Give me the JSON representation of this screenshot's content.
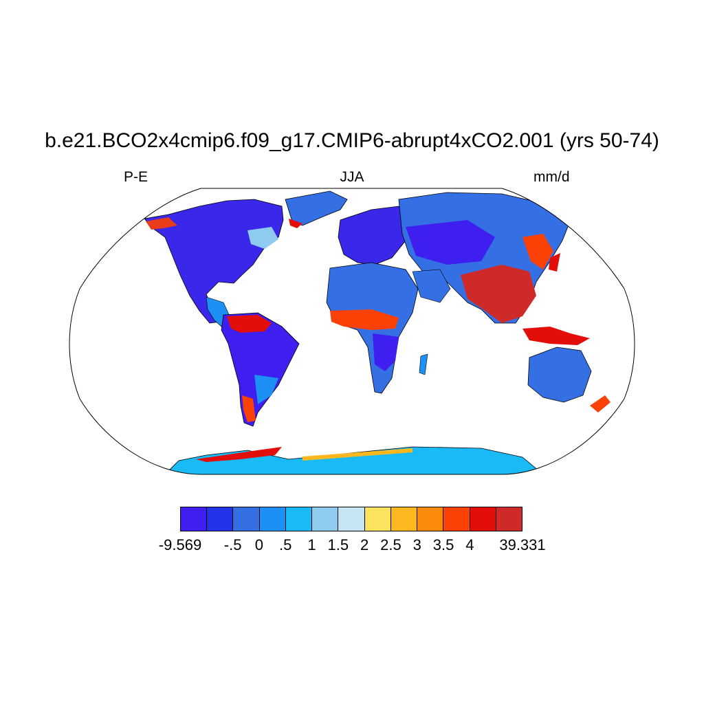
{
  "header": {
    "title": "b.e21.BCO2x4cmip6.f09_g17.CMIP6-abrupt4xCO2.001 (yrs 50-74)",
    "left_label": "P-E",
    "center_label": "JJA",
    "right_label": "mm/d"
  },
  "map": {
    "projection": "Robinson",
    "variable": "P-E",
    "season": "JJA",
    "units": "mm/d",
    "ocean_color": "#ffffff",
    "coastline_color": "#000000"
  },
  "colorbar": {
    "colors": [
      "#3f1ef0",
      "#2233e8",
      "#356fe4",
      "#1c90f5",
      "#19baf6",
      "#8ecbee",
      "#c7e4f4",
      "#fbe35d",
      "#fcb81e",
      "#fc8a0a",
      "#fc4107",
      "#e30d0a",
      "#cf2a2a"
    ],
    "labels": [
      {
        "text": "-9.569",
        "boundary": 0
      },
      {
        "text": "-.5",
        "boundary": 2
      },
      {
        "text": "0",
        "boundary": 3
      },
      {
        "text": ".5",
        "boundary": 4
      },
      {
        "text": "1",
        "boundary": 5
      },
      {
        "text": "1.5",
        "boundary": 6
      },
      {
        "text": "2",
        "boundary": 7
      },
      {
        "text": "2.5",
        "boundary": 8
      },
      {
        "text": "3",
        "boundary": 9
      },
      {
        "text": "3.5",
        "boundary": 10
      },
      {
        "text": "4",
        "boundary": 11
      },
      {
        "text": "39.331",
        "boundary": 13
      }
    ]
  }
}
